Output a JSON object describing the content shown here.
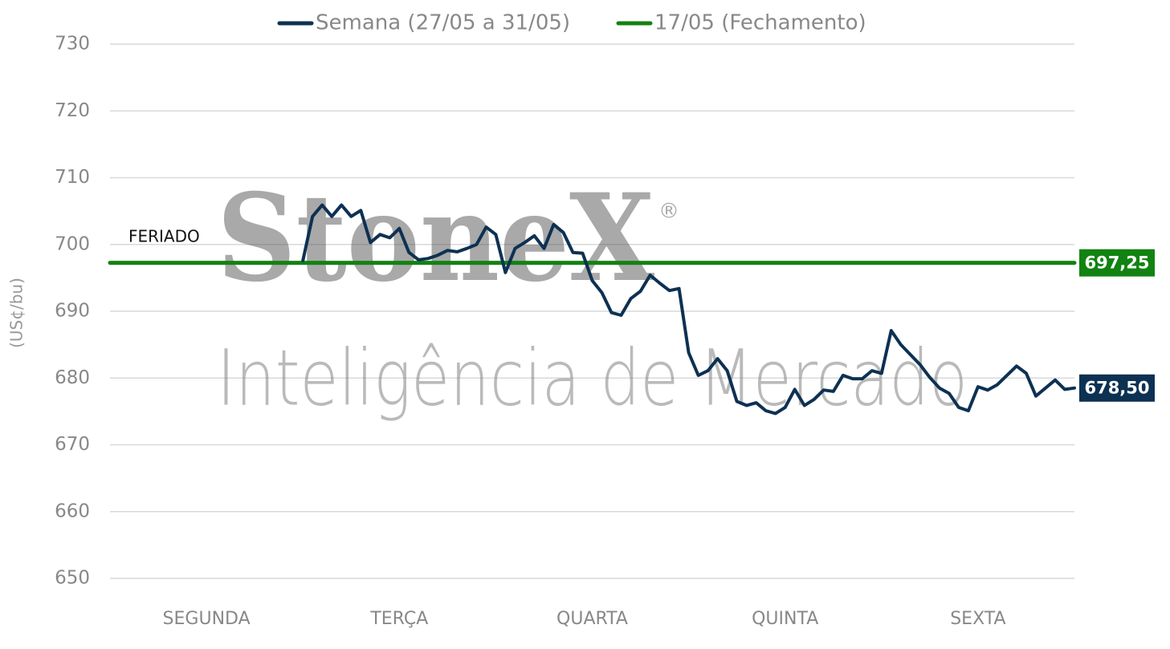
{
  "chart_data": {
    "type": "line",
    "ylabel": "(US¢/bu)",
    "annotation": "FERIADO",
    "watermark": [
      "StoneX",
      "®",
      "Inteligência de Mercado"
    ],
    "xlim": [
      0,
      5
    ],
    "xticks": [
      {
        "value": 0.5,
        "label": "SEGUNDA"
      },
      {
        "value": 1.5,
        "label": "TERÇA"
      },
      {
        "value": 2.5,
        "label": "QUARTA"
      },
      {
        "value": 3.5,
        "label": "QUINTA"
      },
      {
        "value": 4.5,
        "label": "SEXTA"
      }
    ],
    "ylim": [
      650,
      730
    ],
    "yticks": [
      650,
      660,
      670,
      680,
      690,
      700,
      710,
      720,
      730
    ],
    "grid": true,
    "legend": "top",
    "series": [
      {
        "name": "Semana (27/05 a 31/05)",
        "color": "#0d3152",
        "x": [
          1.0,
          1.05,
          1.1,
          1.15,
          1.2,
          1.25,
          1.3,
          1.35,
          1.4,
          1.45,
          1.5,
          1.55,
          1.6,
          1.65,
          1.7,
          1.75,
          1.8,
          1.85,
          1.9,
          1.95,
          2.0,
          2.05,
          2.1,
          2.15,
          2.2,
          2.25,
          2.3,
          2.35,
          2.4,
          2.45,
          2.5,
          2.55,
          2.6,
          2.65,
          2.7,
          2.75,
          2.8,
          2.85,
          2.9,
          2.95,
          3.0,
          3.05,
          3.1,
          3.15,
          3.2,
          3.25,
          3.3,
          3.35,
          3.4,
          3.45,
          3.5,
          3.55,
          3.6,
          3.65,
          3.7,
          3.75,
          3.8,
          3.85,
          3.9,
          3.95,
          4.0,
          4.05,
          4.1,
          4.15,
          4.2,
          4.25,
          4.3,
          4.35,
          4.4,
          4.45,
          4.5,
          4.55,
          4.6,
          4.65,
          4.7,
          4.75,
          4.8,
          4.85,
          4.9,
          4.95,
          5.0
        ],
        "values": [
          697.6,
          704.2,
          705.9,
          704.2,
          705.9,
          704.2,
          705.1,
          700.3,
          701.5,
          701,
          702.4,
          698.8,
          697.7,
          697.9,
          698.4,
          699.1,
          698.9,
          699.4,
          700,
          702.6,
          701.5,
          695.8,
          699.4,
          700.3,
          701.3,
          699.4,
          703,
          701.8,
          698.8,
          698.7,
          694.6,
          692.8,
          689.8,
          689.4,
          691.9,
          693,
          695.4,
          694.2,
          693.1,
          693.4,
          683.8,
          680.4,
          681.1,
          682.9,
          681.1,
          676.5,
          675.9,
          676.3,
          675.1,
          674.7,
          675.6,
          678.3,
          675.9,
          676.8,
          678.2,
          678,
          680.4,
          679.9,
          679.9,
          681.1,
          680.7,
          687.1,
          685,
          683.5,
          682,
          680.1,
          678.5,
          677.7,
          675.6,
          675.1,
          678.7,
          678.2,
          679,
          680.4,
          681.8,
          680.7,
          677.3,
          678.5,
          679.7,
          678.3,
          678.5
        ],
        "value_labels": [
          null,
          null,
          null,
          null,
          null,
          null,
          null,
          null,
          null,
          null,
          null,
          null,
          null,
          null,
          null,
          null,
          null,
          null,
          null,
          null,
          null,
          null,
          null,
          null,
          null,
          null,
          null,
          null,
          null,
          null,
          null,
          null,
          null,
          null,
          null,
          null,
          null,
          null,
          null,
          null,
          null,
          null,
          null,
          null,
          null,
          null,
          null,
          null,
          null,
          null,
          null,
          null,
          null,
          null,
          null,
          null,
          null,
          null,
          null,
          null,
          null,
          null,
          null,
          null,
          null,
          null,
          null,
          null,
          null,
          null,
          null,
          null,
          null,
          null,
          null,
          null,
          null,
          null,
          null,
          null,
          "678,50"
        ]
      },
      {
        "name": "17/05 (Fechamento)",
        "color": "#128212",
        "x": [
          0,
          5
        ],
        "values": [
          697.25,
          697.25
        ],
        "value_labels": [
          null,
          "697,25"
        ]
      }
    ]
  }
}
